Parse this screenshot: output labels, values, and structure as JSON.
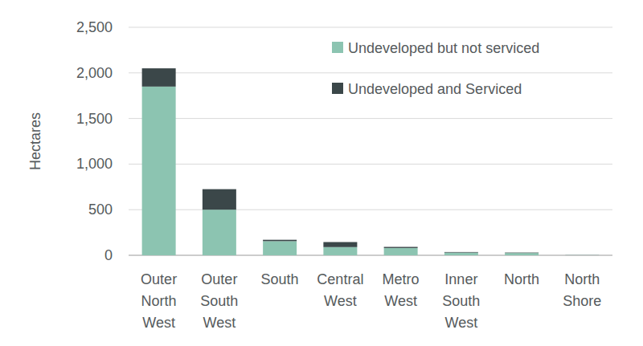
{
  "chart_data": {
    "type": "bar",
    "stacked": true,
    "grid": true,
    "legend": "upper right",
    "y_label": "Hectares",
    "categories": [
      "Outer North West",
      "Outer South West",
      "South",
      "Central West",
      "Metro West",
      "Inner South West",
      "North",
      "North Shore"
    ],
    "series": [
      {
        "name": "Undeveloped but not serviced",
        "color": "#8cc4b1",
        "values": [
          1850,
          500,
          155,
          90,
          80,
          30,
          25,
          2
        ]
      },
      {
        "name": "Undeveloped and Serviced",
        "color": "#3b4749",
        "values": [
          200,
          225,
          15,
          55,
          12,
          6,
          5,
          1
        ]
      }
    ],
    "ylim": [
      0,
      2500
    ],
    "yticks": [
      0,
      500,
      {
        "value": 1000,
        "label": "1,000"
      },
      {
        "value": 1500,
        "label": "1,500"
      },
      {
        "value": 2000,
        "label": "2,000"
      },
      {
        "value": 2500,
        "label": "2,500"
      }
    ]
  }
}
